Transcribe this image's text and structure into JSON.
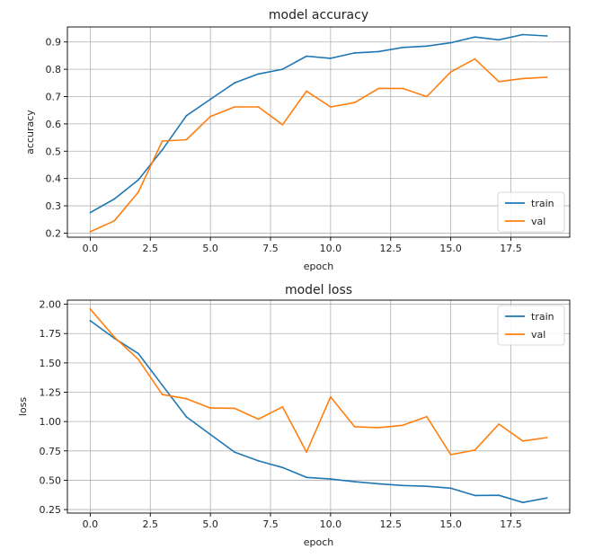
{
  "chart_data": [
    {
      "type": "line",
      "title": "model accuracy",
      "xlabel": "epoch",
      "ylabel": "accuracy",
      "xlim": [
        -0.95,
        19.95
      ],
      "ylim": [
        0.185,
        0.955
      ],
      "xticks": [
        0.0,
        2.5,
        5.0,
        7.5,
        10.0,
        12.5,
        15.0,
        17.5
      ],
      "xtick_labels": [
        "0.0",
        "2.5",
        "5.0",
        "7.5",
        "10.0",
        "12.5",
        "15.0",
        "17.5"
      ],
      "yticks": [
        0.2,
        0.3,
        0.4,
        0.5,
        0.6,
        0.7,
        0.8,
        0.9
      ],
      "ytick_labels": [
        "0.2",
        "0.3",
        "0.4",
        "0.5",
        "0.6",
        "0.7",
        "0.8",
        "0.9"
      ],
      "grid": true,
      "legend_position": "lower-right",
      "x": [
        0,
        1,
        2,
        3,
        4,
        5,
        6,
        7,
        8,
        9,
        10,
        11,
        12,
        13,
        14,
        15,
        16,
        17,
        18,
        19
      ],
      "series": [
        {
          "name": "train",
          "color": "#1f77b4",
          "values": [
            0.275,
            0.325,
            0.395,
            0.505,
            0.63,
            0.69,
            0.75,
            0.783,
            0.8,
            0.848,
            0.84,
            0.86,
            0.865,
            0.88,
            0.885,
            0.897,
            0.918,
            0.908,
            0.927,
            0.922
          ]
        },
        {
          "name": "val",
          "color": "#ff7f0e",
          "values": [
            0.205,
            0.245,
            0.35,
            0.537,
            0.542,
            0.627,
            0.662,
            0.662,
            0.597,
            0.72,
            0.662,
            0.678,
            0.73,
            0.73,
            0.7,
            0.79,
            0.838,
            0.755,
            0.766,
            0.771
          ]
        }
      ]
    },
    {
      "type": "line",
      "title": "model loss",
      "xlabel": "epoch",
      "ylabel": "loss",
      "xlim": [
        -0.95,
        19.95
      ],
      "ylim": [
        0.22,
        2.035
      ],
      "xticks": [
        0.0,
        2.5,
        5.0,
        7.5,
        10.0,
        12.5,
        15.0,
        17.5
      ],
      "xtick_labels": [
        "0.0",
        "2.5",
        "5.0",
        "7.5",
        "10.0",
        "12.5",
        "15.0",
        "17.5"
      ],
      "yticks": [
        0.25,
        0.5,
        0.75,
        1.0,
        1.25,
        1.5,
        1.75,
        2.0
      ],
      "ytick_labels": [
        "0.25",
        "0.50",
        "0.75",
        "1.00",
        "1.25",
        "1.50",
        "1.75",
        "2.00"
      ],
      "grid": true,
      "legend_position": "upper-right",
      "x": [
        0,
        1,
        2,
        3,
        4,
        5,
        6,
        7,
        8,
        9,
        10,
        11,
        12,
        13,
        14,
        15,
        16,
        17,
        18,
        19
      ],
      "series": [
        {
          "name": "train",
          "color": "#1f77b4",
          "values": [
            1.86,
            1.71,
            1.58,
            1.31,
            1.04,
            0.89,
            0.74,
            0.665,
            0.608,
            0.524,
            0.51,
            0.487,
            0.47,
            0.455,
            0.448,
            0.432,
            0.37,
            0.372,
            0.31,
            0.349
          ]
        },
        {
          "name": "val",
          "color": "#ff7f0e",
          "values": [
            1.96,
            1.72,
            1.53,
            1.23,
            1.195,
            1.115,
            1.113,
            1.02,
            1.125,
            0.74,
            1.21,
            0.956,
            0.948,
            0.968,
            1.042,
            0.718,
            0.757,
            0.978,
            0.834,
            0.863
          ]
        }
      ]
    }
  ]
}
